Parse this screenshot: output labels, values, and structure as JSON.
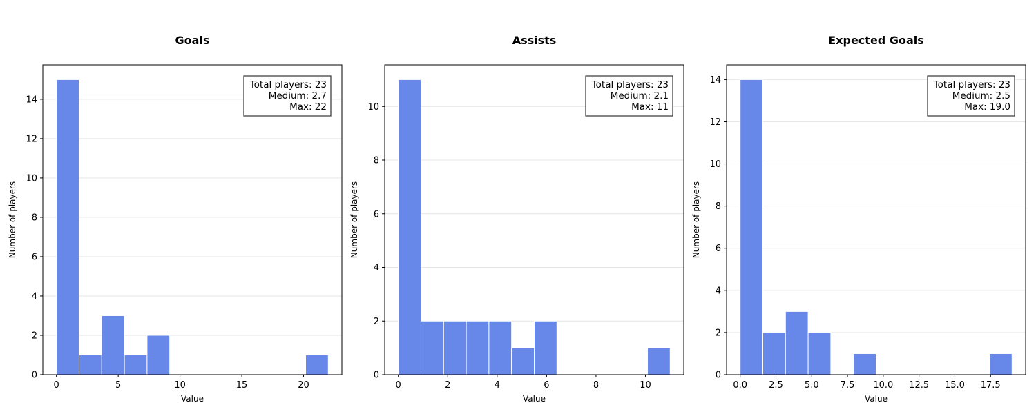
{
  "chart_data": [
    {
      "type": "bar",
      "title": "Goals",
      "xlabel": "Value",
      "ylabel": "Number of players",
      "xlim": [
        -1.1,
        23.1
      ],
      "ylim": [
        0,
        15.75
      ],
      "xticks": [
        0,
        5,
        10,
        15,
        20
      ],
      "xtick_labels": [
        "0",
        "5",
        "10",
        "15",
        "20"
      ],
      "yticks": [
        0,
        2,
        4,
        6,
        8,
        10,
        12,
        14
      ],
      "grid": "y",
      "bin_edges": [
        0,
        1.8333,
        3.6667,
        5.5,
        7.3333,
        9.1667,
        11,
        12.8333,
        14.6667,
        16.5,
        18.3333,
        20.1667,
        22
      ],
      "counts": [
        15,
        1,
        3,
        1,
        2,
        0,
        0,
        0,
        0,
        0,
        0,
        1
      ],
      "bar_color": "#6788e8",
      "stats": [
        "Total players: 23",
        "Medium: 2.7",
        "Max: 22"
      ]
    },
    {
      "type": "bar",
      "title": "Assists",
      "xlabel": "Value",
      "ylabel": "Number of players",
      "xlim": [
        -0.55,
        11.55
      ],
      "ylim": [
        0,
        11.55
      ],
      "xticks": [
        0,
        2,
        4,
        6,
        8,
        10
      ],
      "xtick_labels": [
        "0",
        "2",
        "4",
        "6",
        "8",
        "10"
      ],
      "yticks": [
        0,
        2,
        4,
        6,
        8,
        10
      ],
      "grid": "y",
      "bin_edges": [
        0,
        0.9167,
        1.8333,
        2.75,
        3.6667,
        4.5833,
        5.5,
        6.4167,
        7.3333,
        8.25,
        9.1667,
        10.0833,
        11
      ],
      "counts": [
        11,
        2,
        2,
        2,
        2,
        1,
        2,
        0,
        0,
        0,
        0,
        1
      ],
      "bar_color": "#6788e8",
      "stats": [
        "Total players: 23",
        "Medium: 2.1",
        "Max: 11"
      ]
    },
    {
      "type": "bar",
      "title": "Expected Goals",
      "xlabel": "Value",
      "ylabel": "Number of players",
      "xlim": [
        -0.95,
        19.95
      ],
      "ylim": [
        0,
        14.7
      ],
      "xticks": [
        0,
        2.5,
        5,
        7.5,
        10,
        12.5,
        15,
        17.5
      ],
      "xtick_labels": [
        "0.0",
        "2.5",
        "5.0",
        "7.5",
        "10.0",
        "12.5",
        "15.0",
        "17.5"
      ],
      "yticks": [
        0,
        2,
        4,
        6,
        8,
        10,
        12,
        14
      ],
      "grid": "y",
      "bin_edges": [
        0,
        1.5833,
        3.1667,
        4.75,
        6.3333,
        7.9167,
        9.5,
        11.0833,
        12.6667,
        14.25,
        15.8333,
        17.4167,
        19
      ],
      "counts": [
        14,
        2,
        3,
        2,
        0,
        1,
        0,
        0,
        0,
        0,
        0,
        1
      ],
      "bar_color": "#6788e8",
      "stats": [
        "Total players: 23",
        "Medium: 2.5",
        "Max: 19.0"
      ]
    }
  ]
}
